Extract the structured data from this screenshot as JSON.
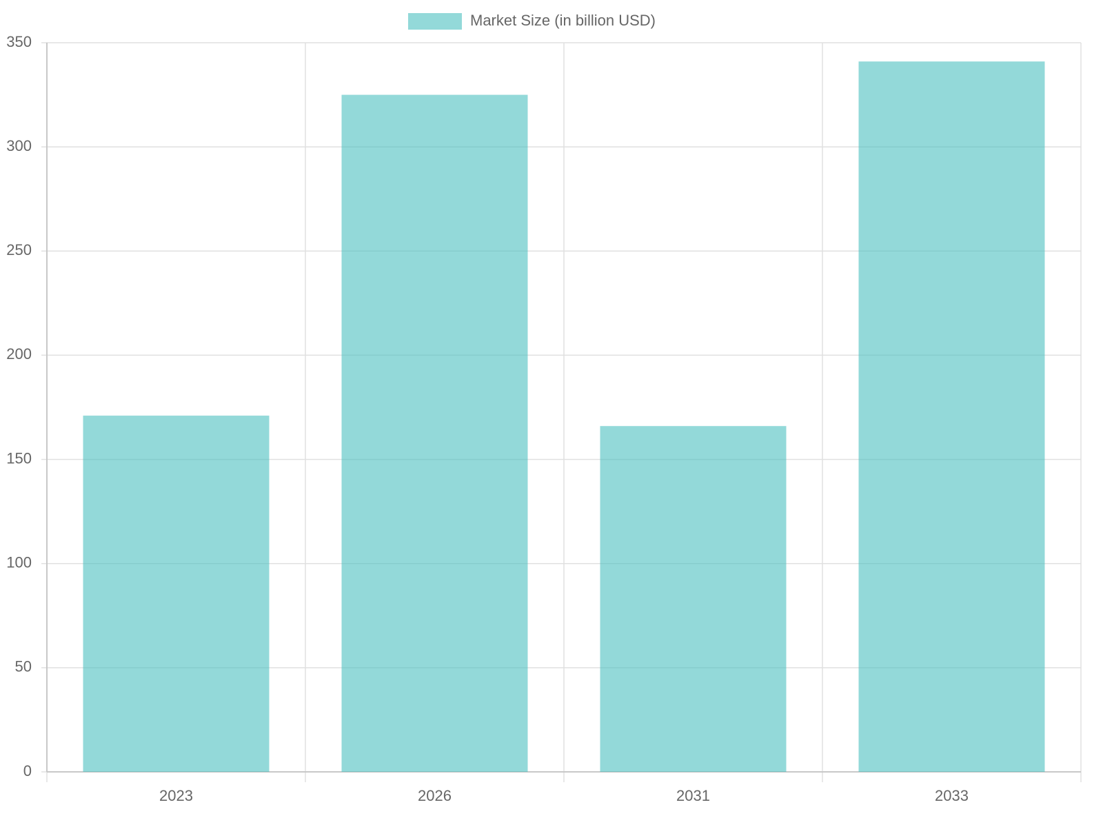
{
  "chart_data": {
    "type": "bar",
    "categories": [
      "2023",
      "2026",
      "2031",
      "2033"
    ],
    "series": [
      {
        "name": "Market Size (in billion USD)",
        "color": "rgba(75, 192, 192, 0.6)",
        "values": [
          171,
          325,
          166,
          341
        ]
      }
    ],
    "ylim": [
      0,
      350
    ],
    "yticks": [
      0,
      50,
      100,
      150,
      200,
      250,
      300,
      350
    ],
    "grid": true,
    "legend": "top"
  }
}
